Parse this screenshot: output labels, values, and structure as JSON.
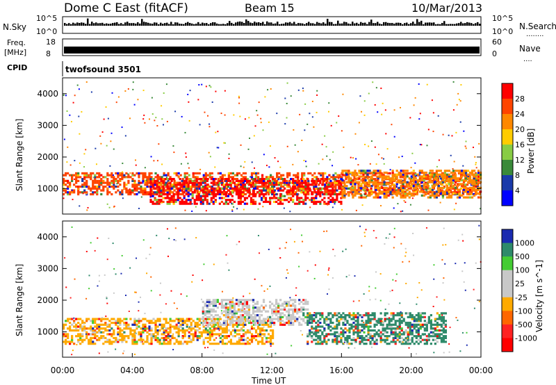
{
  "header": {
    "title": "Dome C East (fitACF)",
    "beam": "Beam 15",
    "date": "10/Mar/2013"
  },
  "nsky": {
    "label": "N.Sky",
    "tick_top": "10^5",
    "tick_bottom": "10^0",
    "right_label": "N.Search",
    "right_tick_top": "10^5",
    "right_tick_bottom": "10^0",
    "right_dots": "........"
  },
  "freq": {
    "label": "Freq.",
    "unit": "[MHz]",
    "tick_top": "18",
    "tick_bottom": "8",
    "right_label": "Nave",
    "right_tick_top": "60",
    "right_tick_bottom": "0",
    "right_dots": "...."
  },
  "cpid": {
    "label": "CPID",
    "value": "twofsound 3501"
  },
  "power_colorbar": {
    "label": "Power [dB]",
    "ticks": [
      "28",
      "24",
      "20",
      "16",
      "12",
      "8",
      "4"
    ],
    "colors": [
      "#ff0000",
      "#ff4400",
      "#ff8800",
      "#ffcc00",
      "#88cc44",
      "#3a8a3a",
      "#1a3aaa",
      "#0000ff"
    ]
  },
  "velocity_colorbar": {
    "label": "Velocity [m s^-1]",
    "ticks": [
      "1000",
      "500",
      "100",
      "25",
      "-25",
      "-100",
      "-500",
      "-1000"
    ],
    "colors": [
      "#1a2ab0",
      "#2e8a6a",
      "#44cc33",
      "#c8c8c8",
      "#c8c8c8",
      "#ffaa00",
      "#ff6600",
      "#ff2222",
      "#ff0000"
    ]
  },
  "chart_data": [
    {
      "type": "heatmap",
      "name": "power",
      "ylabel": "Slant Range [km]",
      "xlabel": "",
      "y_ticks": [
        "1000",
        "2000",
        "3000",
        "4000"
      ],
      "ylim": [
        200,
        4500
      ],
      "xlim": [
        "00:00",
        "24:00"
      ],
      "bands": [
        {
          "from_hour": 0,
          "to_hour": 24,
          "y_low": 800,
          "y_high": 1500,
          "level": "24"
        },
        {
          "from_hour": 5,
          "to_hour": 16,
          "y_low": 500,
          "y_high": 1300,
          "level": "28"
        },
        {
          "from_hour": 16,
          "to_hour": 24,
          "y_low": 700,
          "y_high": 1600,
          "level": "20"
        }
      ]
    },
    {
      "type": "heatmap",
      "name": "velocity",
      "ylabel": "Slant Range [km]",
      "xlabel": "Time UT",
      "y_ticks": [
        "1000",
        "2000",
        "3000",
        "4000"
      ],
      "ylim": [
        200,
        4500
      ],
      "x_ticks": [
        "00:00",
        "04:00",
        "08:00",
        "12:00",
        "16:00",
        "20:00",
        "00:00"
      ],
      "bands": [
        {
          "from_hour": 0,
          "to_hour": 12,
          "y_low": 600,
          "y_high": 1400,
          "level": "-100"
        },
        {
          "from_hour": 8,
          "to_hour": 14,
          "y_low": 1200,
          "y_high": 2000,
          "level": "25"
        },
        {
          "from_hour": 14,
          "to_hour": 22,
          "y_low": 600,
          "y_high": 1600,
          "level": "500"
        }
      ]
    }
  ]
}
